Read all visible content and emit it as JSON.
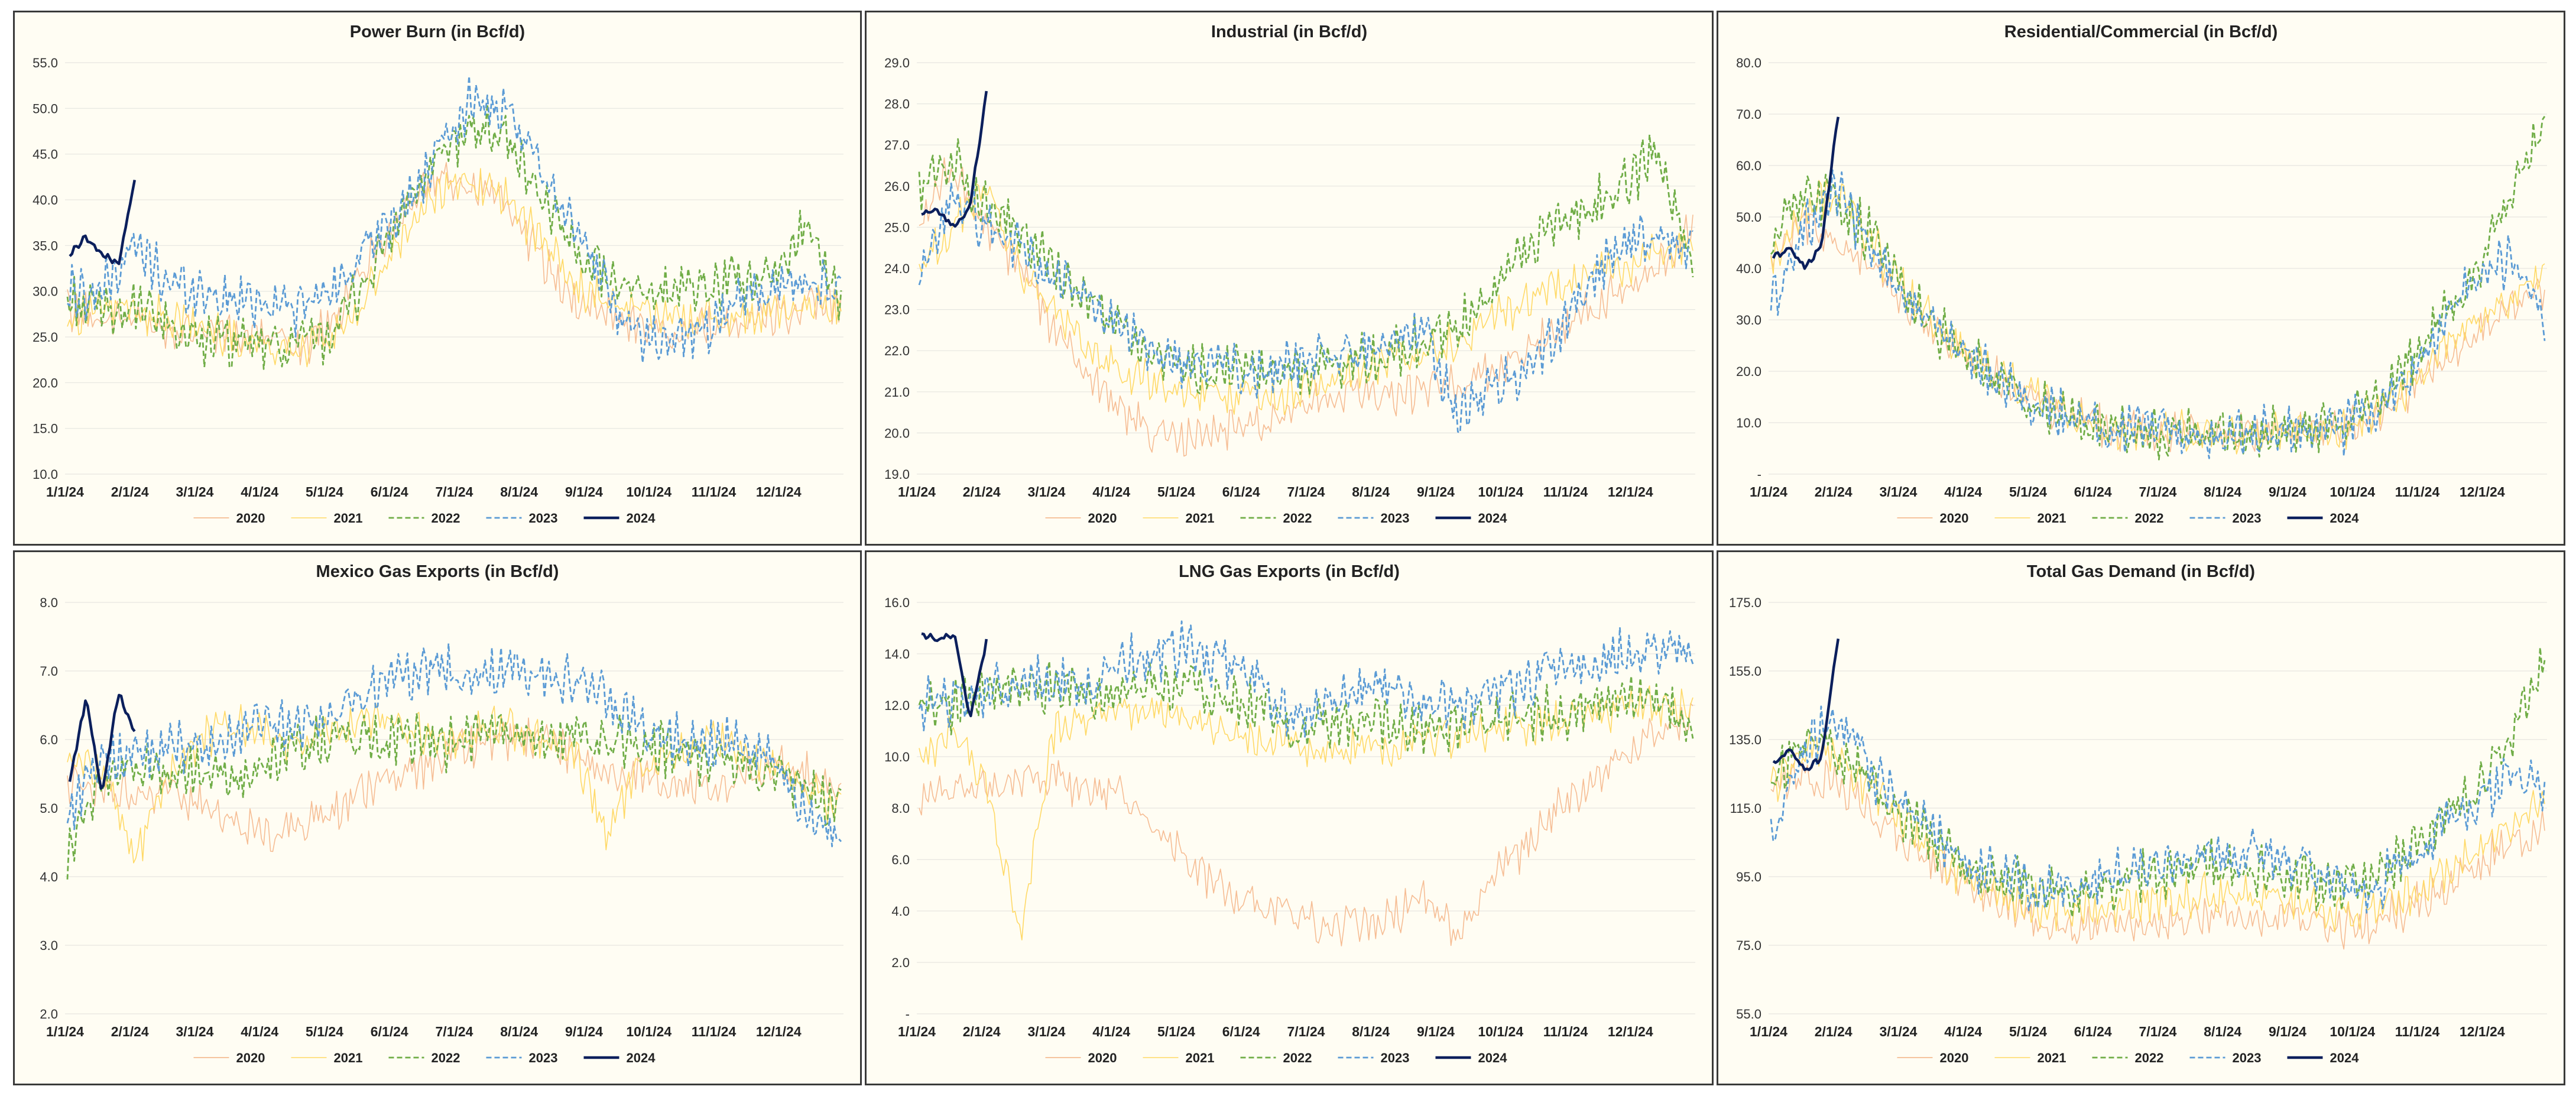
{
  "colors": {
    "panel_bg": "#fffdf3",
    "grid": "#e6e6e0",
    "s2020": "#f4b183",
    "s2021": "#ffd966",
    "s2022": "#70ad47",
    "s2023": "#5b9bd5",
    "s2024": "#0b1f5c"
  },
  "legend": [
    "2020",
    "2021",
    "2022",
    "2023",
    "2024"
  ],
  "x_ticks": [
    "1/1/24",
    "2/1/24",
    "3/1/24",
    "4/1/24",
    "5/1/24",
    "6/1/24",
    "7/1/24",
    "8/1/24",
    "9/1/24",
    "10/1/24",
    "11/1/24",
    "12/1/24"
  ],
  "chart_data": [
    {
      "type": "line",
      "title": "Power Burn (in Bcf/d)",
      "ylim": [
        10,
        55
      ],
      "y_ticks": [
        "10.0",
        "15.0",
        "20.0",
        "25.0",
        "30.0",
        "35.0",
        "40.0",
        "45.0",
        "50.0",
        "55.0"
      ],
      "series": [
        {
          "name": "2020",
          "values": [
            28,
            27,
            27,
            26,
            26,
            25,
            25,
            24,
            27,
            34,
            39,
            42,
            42,
            40,
            34,
            29,
            28,
            26,
            26,
            26,
            27,
            27,
            28,
            29
          ]
        },
        {
          "name": "2021",
          "values": [
            27,
            28,
            28,
            27,
            26,
            25,
            24,
            24,
            25,
            30,
            36,
            41,
            42,
            40,
            36,
            31,
            29,
            28,
            27,
            27,
            27,
            28,
            29,
            28
          ]
        },
        {
          "name": "2022",
          "values": [
            29,
            28,
            28,
            26,
            25,
            24,
            24,
            24,
            26,
            32,
            39,
            44,
            48,
            47,
            41,
            35,
            32,
            30,
            30,
            30,
            31,
            31,
            38,
            28
          ]
        },
        {
          "name": "2023",
          "values": [
            30,
            30,
            35,
            31,
            30,
            29,
            29,
            28,
            31,
            35,
            39,
            45,
            51,
            49,
            44,
            38,
            30,
            25,
            25,
            26,
            29,
            30,
            31,
            30
          ]
        },
        {
          "name": "2024",
          "values": [
            34,
            36,
            34,
            33,
            42
          ]
        }
      ]
    },
    {
      "type": "line",
      "title": "Industrial (in Bcf/d)",
      "ylim": [
        19,
        29
      ],
      "y_ticks": [
        "19.0",
        "20.0",
        "21.0",
        "22.0",
        "23.0",
        "24.0",
        "25.0",
        "26.0",
        "27.0",
        "28.0",
        "29.0"
      ],
      "series": [
        {
          "name": "2020",
          "values": [
            25,
            26.5,
            25,
            24,
            22.5,
            21.5,
            20.5,
            20,
            19.8,
            20.1,
            20.3,
            20.5,
            20.8,
            21,
            20.9,
            21,
            21.2,
            21.5,
            22,
            22.5,
            23,
            23.5,
            24,
            25
          ]
        },
        {
          "name": "2021",
          "values": [
            24,
            25,
            26,
            24,
            23,
            22,
            21.5,
            21.2,
            21,
            20.9,
            20.9,
            21,
            21.2,
            21.5,
            21.8,
            22,
            22.2,
            22.8,
            23.2,
            23.5,
            23.8,
            24,
            24.5,
            24.5
          ]
        },
        {
          "name": "2022",
          "values": [
            26,
            26.7,
            25.5,
            24.8,
            24,
            23.2,
            22.5,
            21.8,
            21.6,
            21.5,
            21.4,
            21.5,
            21.6,
            21.8,
            22,
            22.2,
            22.5,
            23.5,
            24.5,
            25,
            25.5,
            26,
            27,
            24
          ]
        },
        {
          "name": "2023",
          "values": [
            23.5,
            25.8,
            25,
            24.5,
            23.8,
            23.2,
            22.5,
            21.8,
            21.7,
            21.6,
            21.5,
            21.6,
            21.8,
            22,
            22.3,
            22.5,
            20.5,
            21,
            21.5,
            22.5,
            23.8,
            24.5,
            24.8,
            24.5
          ]
        },
        {
          "name": "2024",
          "values": [
            25.3,
            25.4,
            25,
            25.5,
            28.3
          ]
        }
      ]
    },
    {
      "type": "line",
      "title": "Residential/Commercial (in Bcf/d)",
      "ylim": [
        0,
        80
      ],
      "y_ticks": [
        "-",
        "10.0",
        "20.0",
        "30.0",
        "40.0",
        "50.0",
        "60.0",
        "70.0",
        "80.0"
      ],
      "series": [
        {
          "name": "2020",
          "values": [
            42,
            48,
            45,
            40,
            33,
            27,
            22,
            18,
            14,
            11,
            9,
            8.5,
            8,
            8,
            8,
            8,
            8.5,
            9,
            12,
            16,
            22,
            28,
            32,
            36
          ]
        },
        {
          "name": "2021",
          "values": [
            40,
            52,
            55,
            45,
            35,
            28,
            23,
            18,
            14,
            11,
            9,
            8.5,
            8,
            8,
            8,
            8,
            8.5,
            9,
            12,
            17,
            25,
            30,
            34,
            38
          ]
        },
        {
          "name": "2022",
          "values": [
            45,
            55,
            52,
            46,
            36,
            28,
            22,
            17,
            13,
            10.5,
            9,
            8.5,
            8,
            8,
            8,
            8,
            8.5,
            9.5,
            14,
            22,
            32,
            40,
            55,
            70
          ]
        },
        {
          "name": "2023",
          "values": [
            32,
            48,
            55,
            42,
            35,
            28,
            22,
            17,
            13,
            10.5,
            9,
            8.5,
            8,
            8,
            8,
            8,
            8.5,
            9,
            13,
            20,
            30,
            38,
            42,
            30
          ]
        },
        {
          "name": "2024",
          "values": [
            42,
            44,
            40,
            45,
            70
          ]
        }
      ]
    },
    {
      "type": "line",
      "title": "Mexico Gas Exports (in Bcf/d)",
      "ylim": [
        2,
        8
      ],
      "y_ticks": [
        "2.0",
        "3.0",
        "4.0",
        "5.0",
        "6.0",
        "7.0",
        "8.0"
      ],
      "series": [
        {
          "name": "2020",
          "values": [
            5.4,
            5.3,
            5.2,
            5.3,
            5.0,
            4.8,
            4.6,
            4.8,
            5.0,
            5.3,
            5.5,
            5.7,
            5.9,
            6.0,
            6.0,
            5.8,
            5.6,
            5.5,
            5.4,
            5.3,
            5.5,
            5.6,
            5.5,
            5.3
          ]
        },
        {
          "name": "2021",
          "values": [
            5.8,
            5.6,
            4.2,
            5.5,
            6.0,
            6.2,
            6.1,
            5.9,
            6.2,
            6.3,
            6.2,
            6.0,
            6.1,
            6.2,
            6.0,
            5.9,
            4.6,
            5.6,
            5.8,
            6.0,
            5.8,
            5.6,
            5.3,
            5.0
          ]
        },
        {
          "name": "2022",
          "values": [
            4.3,
            5.4,
            5.6,
            5.5,
            5.6,
            5.4,
            5.7,
            5.9,
            6.0,
            6.1,
            6.0,
            5.9,
            6.0,
            6.1,
            5.9,
            6.0,
            5.9,
            6.0,
            5.8,
            5.7,
            5.6,
            5.5,
            5.2,
            5.0
          ]
        },
        {
          "name": "2023",
          "values": [
            4.9,
            5.7,
            5.8,
            5.9,
            5.9,
            6.0,
            6.3,
            6.2,
            6.4,
            6.7,
            6.9,
            7.1,
            6.8,
            7.0,
            6.9,
            6.8,
            6.6,
            6.2,
            6.0,
            5.9,
            6.0,
            5.7,
            4.9,
            4.7
          ]
        },
        {
          "name": "2024",
          "values": [
            5.4,
            6.6,
            5.2,
            6.7,
            6.1
          ]
        }
      ]
    },
    {
      "type": "line",
      "title": "LNG Gas Exports (in Bcf/d)",
      "ylim": [
        0,
        16
      ],
      "y_ticks": [
        "-",
        "2.0",
        "4.0",
        "6.0",
        "8.0",
        "10.0",
        "12.0",
        "14.0",
        "16.0"
      ],
      "series": [
        {
          "name": "2020",
          "values": [
            8.3,
            8.8,
            8.7,
            9.2,
            9.3,
            8.6,
            8.5,
            7.0,
            6.0,
            4.8,
            4.2,
            3.8,
            3.4,
            3.5,
            3.8,
            4.5,
            3.0,
            5.5,
            6.5,
            8.0,
            9.0,
            10.0,
            11.0,
            11.8
          ]
        },
        {
          "name": "2021",
          "values": [
            10.0,
            11.0,
            9.0,
            3.0,
            11.0,
            11.5,
            11.8,
            11.7,
            11.5,
            11.0,
            10.8,
            10.5,
            10.3,
            10.4,
            10.5,
            10.6,
            10.8,
            11.0,
            11.2,
            11.5,
            11.6,
            12.0,
            12.0,
            11.8
          ]
        },
        {
          "name": "2022",
          "values": [
            11.8,
            12.0,
            12.5,
            12.8,
            12.7,
            12.5,
            12.6,
            12.8,
            12.5,
            12.4,
            12.0,
            11.0,
            11.2,
            11.5,
            11.3,
            11.0,
            11.2,
            11.5,
            11.8,
            11.7,
            12.0,
            12.5,
            12.3,
            11.0
          ]
        },
        {
          "name": "2023",
          "values": [
            12.0,
            12.2,
            12.5,
            12.8,
            12.9,
            13.0,
            13.5,
            14.0,
            14.2,
            13.5,
            13.0,
            11.5,
            12.0,
            12.5,
            12.8,
            12.3,
            12.0,
            12.3,
            12.8,
            13.5,
            13.8,
            14.0,
            14.2,
            14.5
          ]
        },
        {
          "name": "2024",
          "values": [
            14.8,
            14.5,
            14.8,
            11.5,
            14.5
          ]
        }
      ]
    },
    {
      "type": "line",
      "title": "Total Gas Demand (in Bcf/d)",
      "ylim": [
        55,
        175
      ],
      "y_ticks": [
        "55.0",
        "75.0",
        "95.0",
        "115.0",
        "135.0",
        "155.0",
        "175.0"
      ],
      "series": [
        {
          "name": "2020",
          "values": [
            118,
            125,
            122,
            115,
            105,
            98,
            92,
            87,
            82,
            80,
            80,
            81,
            83,
            85,
            84,
            83,
            82,
            80,
            82,
            86,
            92,
            98,
            105,
            110
          ]
        },
        {
          "name": "2021",
          "values": [
            120,
            132,
            130,
            120,
            110,
            100,
            93,
            89,
            86,
            85,
            86,
            87,
            88,
            90,
            90,
            88,
            86,
            84,
            85,
            90,
            96,
            102,
            110,
            115
          ]
        },
        {
          "name": "2022",
          "values": [
            122,
            135,
            132,
            122,
            112,
            104,
            97,
            93,
            91,
            90,
            92,
            95,
            97,
            98,
            97,
            96,
            94,
            92,
            95,
            102,
            112,
            122,
            135,
            158
          ]
        },
        {
          "name": "2023",
          "values": [
            106,
            133,
            140,
            125,
            115,
            106,
            99,
            95,
            92,
            91,
            94,
            98,
            101,
            102,
            102,
            100,
            98,
            92,
            92,
            100,
            110,
            118,
            124,
            118
          ]
        },
        {
          "name": "2024",
          "values": [
            128,
            132,
            126,
            130,
            165
          ]
        }
      ]
    }
  ]
}
